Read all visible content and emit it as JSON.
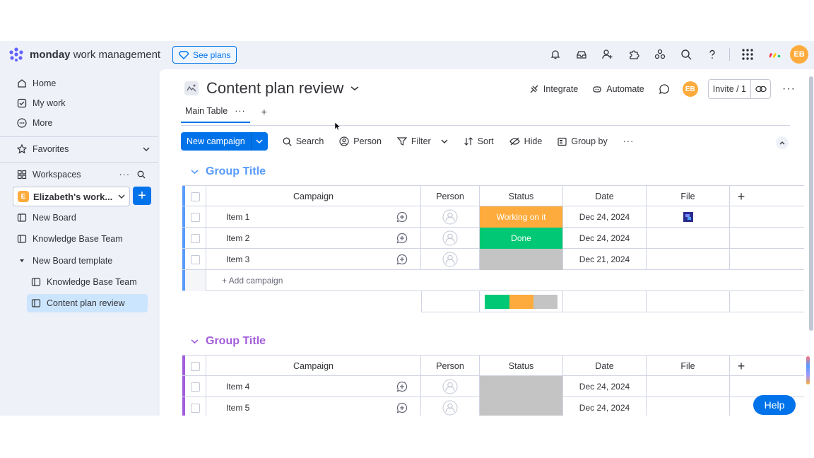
{
  "app": {
    "brand_bold": "monday",
    "brand_light": "work management",
    "see_plans": "See plans",
    "avatar": "EB"
  },
  "topbar": {
    "icons": [
      "bell-icon",
      "inbox-icon",
      "invite-members-icon",
      "integrations-icon",
      "apps-icon",
      "search-icon",
      "help-icon",
      "app-grid-icon"
    ]
  },
  "sidebar": {
    "home": "Home",
    "my_work": "My work",
    "more": "More",
    "favorites": "Favorites",
    "workspaces": "Workspaces",
    "workspace_name": "Elizabeth's work...",
    "workspace_badge": "E",
    "boards": [
      {
        "label": "New Board"
      },
      {
        "label": "Knowledge Base Team"
      },
      {
        "label": "New Board template"
      },
      {
        "label": "Knowledge Base Team"
      },
      {
        "label": "Content plan review"
      }
    ]
  },
  "board": {
    "title": "Content plan review",
    "integrate": "Integrate",
    "automate": "Automate",
    "invite": "Invite / 1",
    "tab_main": "Main Table",
    "toolbar": {
      "new": "New campaign",
      "search": "Search",
      "person": "Person",
      "filter": "Filter",
      "sort": "Sort",
      "hide": "Hide",
      "group_by": "Group by"
    }
  },
  "columns": {
    "campaign": "Campaign",
    "person": "Person",
    "status": "Status",
    "date": "Date",
    "file": "File"
  },
  "groups": [
    {
      "title": "Group Title",
      "color": "#579bfc",
      "items": [
        {
          "name": "Item 1",
          "status": "Working on it",
          "status_color": "#fdab3d",
          "date": "Dec 24, 2024",
          "file": true
        },
        {
          "name": "Item 2",
          "status": "Done",
          "status_color": "#00c875",
          "date": "Dec 24, 2024",
          "file": false
        },
        {
          "name": "Item 3",
          "status": "",
          "status_color": "#c4c4c4",
          "date": "Dec 21, 2024",
          "file": false
        }
      ],
      "add_label": "+ Add campaign",
      "summary": [
        {
          "color": "#00c875",
          "fraction": 0.34
        },
        {
          "color": "#fdab3d",
          "fraction": 0.33
        },
        {
          "color": "#c4c4c4",
          "fraction": 0.33
        }
      ]
    },
    {
      "title": "Group Title",
      "color": "#a25ddc",
      "items": [
        {
          "name": "Item 4",
          "status": "",
          "status_color": "#c4c4c4",
          "date": "Dec 24, 2024",
          "file": false
        },
        {
          "name": "Item 5",
          "status": "",
          "status_color": "#c4c4c4",
          "date": "Dec 24, 2024",
          "file": false
        }
      ]
    }
  ],
  "help": "Help"
}
